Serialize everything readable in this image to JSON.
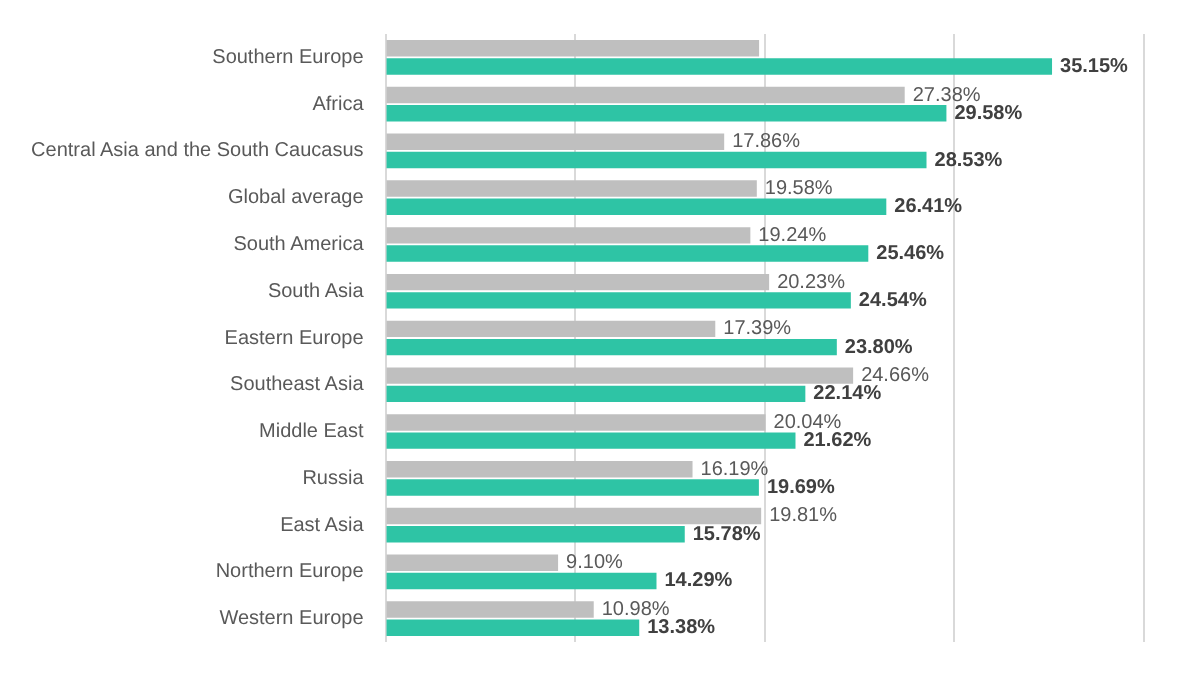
{
  "chart_data": {
    "type": "bar",
    "orientation": "horizontal",
    "categories": [
      "Southern Europe",
      "Africa",
      "Central Asia and the South Caucasus",
      "Global average",
      "South America",
      "South Asia",
      "Eastern Europe",
      "Southeast Asia",
      "Middle East",
      "Russia",
      "East Asia",
      "Northern Europe",
      "Western Europe"
    ],
    "series": [
      {
        "color": "#bfbfbf",
        "values": [
          19.7,
          27.38,
          17.86,
          19.58,
          19.24,
          20.23,
          17.39,
          24.66,
          20.04,
          16.19,
          19.81,
          9.1,
          10.98
        ],
        "value_labels": [
          null,
          "27.38%",
          "17.86%",
          "19.58%",
          "19.24%",
          "20.23%",
          "17.39%",
          "24.66%",
          "20.04%",
          "16.19%",
          "19.81%",
          "9.10%",
          "10.98%"
        ]
      },
      {
        "color": "#2ec4a5",
        "values": [
          35.15,
          29.58,
          28.53,
          26.41,
          25.46,
          24.54,
          23.8,
          22.14,
          21.62,
          19.69,
          15.78,
          14.29,
          13.38
        ],
        "value_labels": [
          "35.15%",
          "29.58%",
          "28.53%",
          "26.41%",
          "25.46%",
          "24.54%",
          "23.80%",
          "22.14%",
          "21.62%",
          "19.69%",
          "15.78%",
          "14.29%",
          "13.38%"
        ]
      }
    ],
    "xlim": [
      0,
      40
    ],
    "xticks": [
      {
        "value": 0,
        "label": null
      },
      {
        "value": 10,
        "label": null
      },
      {
        "value": 20,
        "label": null
      },
      {
        "value": 30,
        "label": null
      },
      {
        "value": 40,
        "label": null
      }
    ],
    "grid": "x",
    "tick_labels": "y",
    "legend": false
  }
}
